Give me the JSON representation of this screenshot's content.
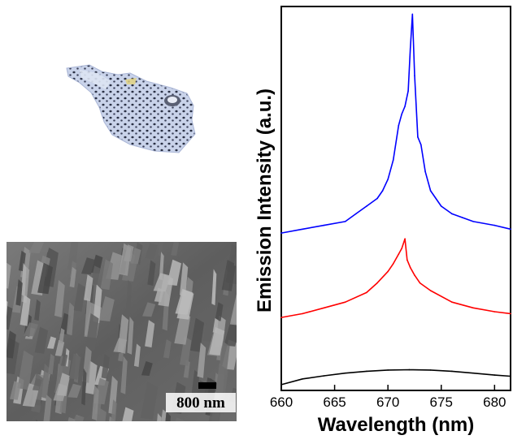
{
  "figure": {
    "scale_bar_label": "800 nm"
  },
  "chart_data": {
    "type": "line",
    "xlabel": "Wavelength (nm)",
    "ylabel": "Emission Intensity (a.u.)",
    "xlim": [
      660,
      681.5
    ],
    "ylim": [
      0,
      1
    ],
    "x_ticks": [
      660,
      665,
      670,
      675,
      680
    ],
    "y_ticks_labeled": false,
    "grid": false,
    "legend": "none",
    "series": [
      {
        "color": "#0000ff",
        "x": [
          660,
          662,
          664,
          666,
          667,
          668,
          669,
          669.5,
          670,
          670.5,
          671,
          671.3,
          671.6,
          671.9,
          672.1,
          672.3,
          672.5,
          672.8,
          673.1,
          673.5,
          674,
          675,
          676,
          677,
          678,
          680,
          681.5
        ],
        "y": [
          0.41,
          0.42,
          0.43,
          0.44,
          0.46,
          0.48,
          0.5,
          0.52,
          0.55,
          0.6,
          0.69,
          0.72,
          0.74,
          0.78,
          0.89,
          0.98,
          0.82,
          0.66,
          0.64,
          0.57,
          0.52,
          0.48,
          0.46,
          0.45,
          0.44,
          0.43,
          0.42
        ]
      },
      {
        "color": "#ff0000",
        "x": [
          660,
          662,
          664,
          666,
          668,
          669,
          670,
          670.5,
          671,
          671.3,
          671.6,
          671.8,
          672.1,
          672.5,
          673,
          674,
          676,
          678,
          680,
          681.5
        ],
        "y": [
          0.19,
          0.2,
          0.215,
          0.23,
          0.255,
          0.28,
          0.31,
          0.33,
          0.355,
          0.37,
          0.395,
          0.34,
          0.32,
          0.3,
          0.28,
          0.26,
          0.23,
          0.215,
          0.205,
          0.2
        ]
      },
      {
        "color": "#000000",
        "x": [
          660,
          662,
          664,
          666,
          668,
          670,
          672,
          674,
          676,
          678,
          680,
          681.5
        ],
        "y": [
          0.015,
          0.03,
          0.038,
          0.045,
          0.05,
          0.053,
          0.054,
          0.053,
          0.05,
          0.045,
          0.04,
          0.037
        ]
      }
    ]
  }
}
